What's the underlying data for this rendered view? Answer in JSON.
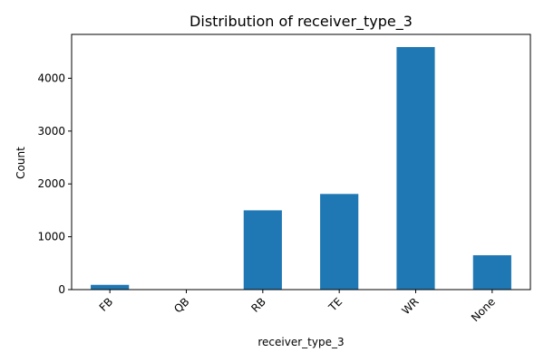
{
  "chart_data": {
    "type": "bar",
    "title": "Distribution of receiver_type_3",
    "xlabel": "receiver_type_3",
    "ylabel": "Count",
    "categories": [
      "FB",
      "QB",
      "RB",
      "TE",
      "WR",
      "None"
    ],
    "values": [
      90,
      5,
      1500,
      1810,
      4590,
      650
    ],
    "ylim": [
      0,
      4830
    ],
    "yticks": [
      0,
      1000,
      2000,
      3000,
      4000
    ],
    "bar_color": "#1f77b4",
    "grid": false,
    "legend": "none",
    "x_tick_rotation_deg": 45
  }
}
